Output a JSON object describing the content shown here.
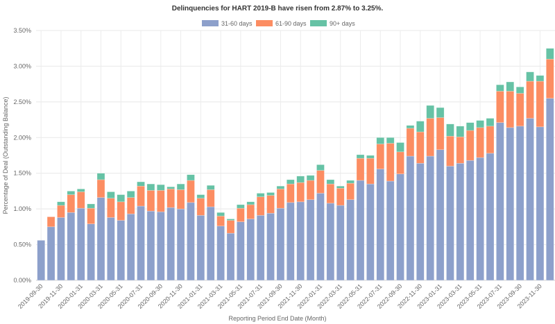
{
  "chart_data": {
    "type": "bar",
    "stacked": true,
    "title": "Delinquencies for HART 2019-B have risen from 2.87% to 3.25%.",
    "xlabel": "Reporting Period End Date (Month)",
    "ylabel": "Percentage of Deal (Outstanding Balance)",
    "ylim": [
      0,
      3.5
    ],
    "yticks": [
      "0.00%",
      "0.50%",
      "1.00%",
      "1.50%",
      "2.00%",
      "2.50%",
      "3.00%",
      "3.50%"
    ],
    "legend_position": "top-center",
    "grid": true,
    "categories": [
      "2019-09-30",
      "2019-10-31",
      "2019-11-30",
      "2019-12-31",
      "2020-01-31",
      "2020-02-29",
      "2020-03-31",
      "2020-04-30",
      "2020-05-31",
      "2020-06-30",
      "2020-07-31",
      "2020-08-31",
      "2020-09-30",
      "2020-10-31",
      "2020-11-30",
      "2020-12-31",
      "2021-01-31",
      "2021-02-28",
      "2021-03-31",
      "2021-04-30",
      "2021-05-31",
      "2021-06-30",
      "2021-07-31",
      "2021-08-31",
      "2021-09-30",
      "2021-10-31",
      "2021-11-30",
      "2021-12-31",
      "2022-01-31",
      "2022-02-28",
      "2022-03-31",
      "2022-04-30",
      "2022-05-31",
      "2022-06-30",
      "2022-07-31",
      "2022-08-31",
      "2022-09-30",
      "2022-10-31",
      "2022-11-30",
      "2022-12-31",
      "2023-01-31",
      "2023-02-28",
      "2023-03-31",
      "2023-04-30",
      "2023-05-31",
      "2023-06-30",
      "2023-07-31",
      "2023-08-31",
      "2023-09-30",
      "2023-10-31",
      "2023-11-30",
      "2023-12-31"
    ],
    "xtick_labels": [
      "2019-09-30",
      "2019-11-30",
      "2020-01-31",
      "2020-03-31",
      "2020-05-31",
      "2020-07-31",
      "2020-09-30",
      "2020-11-30",
      "2021-01-31",
      "2021-03-31",
      "2021-05-31",
      "2021-07-31",
      "2021-09-30",
      "2021-11-30",
      "2022-01-31",
      "2022-03-31",
      "2022-05-31",
      "2022-07-31",
      "2022-09-30",
      "2022-11-30",
      "2023-01-31",
      "2023-03-31",
      "2023-05-31",
      "2023-07-31",
      "2023-09-30",
      "2023-11-30"
    ],
    "series": [
      {
        "name": "31-60 days",
        "color": "#8da0cb",
        "values": [
          0.56,
          0.75,
          0.88,
          0.95,
          1.01,
          0.79,
          1.16,
          0.88,
          0.84,
          0.93,
          1.04,
          0.97,
          0.96,
          1.02,
          1.0,
          1.09,
          0.91,
          1.03,
          0.76,
          0.66,
          0.82,
          0.86,
          0.91,
          0.94,
          1.01,
          1.09,
          1.1,
          1.13,
          1.22,
          1.08,
          1.05,
          1.13,
          1.4,
          1.35,
          1.56,
          1.39,
          1.49,
          1.74,
          1.64,
          1.74,
          1.83,
          1.6,
          1.64,
          1.68,
          1.72,
          1.78,
          2.21,
          2.14,
          2.16,
          2.27,
          2.15,
          2.55
        ]
      },
      {
        "name": "61-90 days",
        "color": "#fc8d62",
        "values": [
          0.0,
          0.14,
          0.17,
          0.25,
          0.23,
          0.22,
          0.25,
          0.27,
          0.26,
          0.23,
          0.28,
          0.29,
          0.3,
          0.26,
          0.27,
          0.31,
          0.24,
          0.24,
          0.14,
          0.18,
          0.19,
          0.2,
          0.26,
          0.25,
          0.27,
          0.26,
          0.27,
          0.27,
          0.32,
          0.27,
          0.24,
          0.23,
          0.31,
          0.36,
          0.35,
          0.53,
          0.31,
          0.39,
          0.44,
          0.53,
          0.45,
          0.42,
          0.37,
          0.42,
          0.42,
          0.38,
          0.44,
          0.51,
          0.46,
          0.52,
          0.64,
          0.55
        ]
      },
      {
        "name": "90+ days",
        "color": "#66c2a5",
        "values": [
          0.0,
          0.0,
          0.05,
          0.05,
          0.04,
          0.06,
          0.09,
          0.09,
          0.1,
          0.09,
          0.06,
          0.09,
          0.08,
          0.03,
          0.08,
          0.08,
          0.05,
          0.06,
          0.05,
          0.02,
          0.05,
          0.04,
          0.05,
          0.04,
          0.04,
          0.06,
          0.09,
          0.07,
          0.08,
          0.06,
          0.03,
          0.04,
          0.05,
          0.04,
          0.09,
          0.08,
          0.13,
          0.04,
          0.15,
          0.18,
          0.14,
          0.17,
          0.15,
          0.11,
          0.1,
          0.11,
          0.09,
          0.13,
          0.09,
          0.13,
          0.08,
          0.15
        ]
      }
    ]
  }
}
